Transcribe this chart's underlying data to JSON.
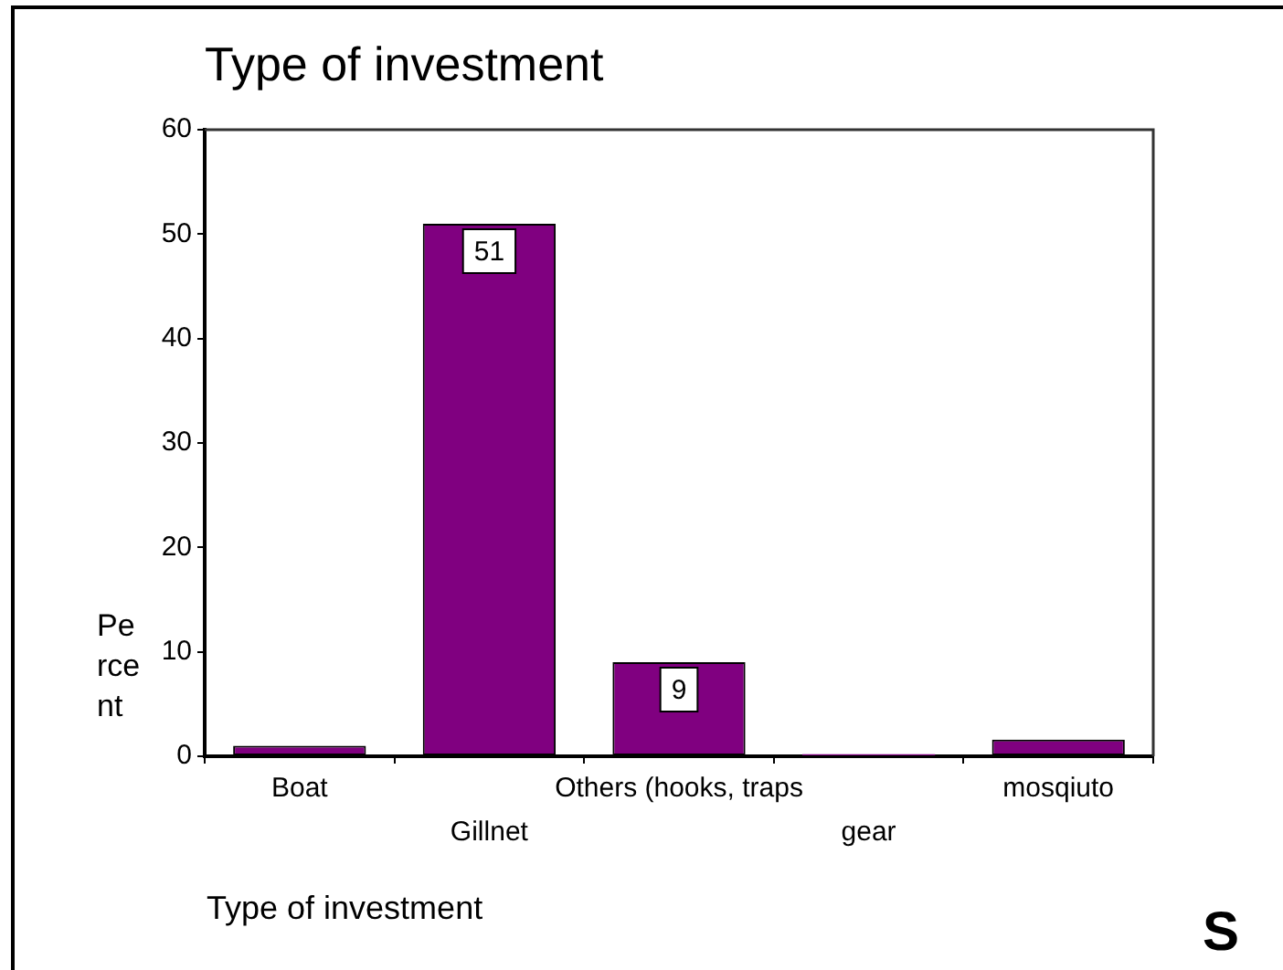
{
  "chart_data": {
    "type": "bar",
    "title": "Type of investment",
    "xlabel": "Type of investment",
    "ylabel": "Percent",
    "categories": [
      "Boat",
      "Gillnet",
      "Others (hooks, traps",
      "gear",
      "mosqiuto"
    ],
    "values": [
      1,
      51,
      9,
      0.2,
      1.6
    ],
    "value_labels": [
      null,
      "51",
      "9",
      null,
      null
    ],
    "color": "#800080",
    "ylim": [
      0,
      60
    ],
    "yticks": [
      0,
      10,
      20,
      30,
      40,
      50,
      60
    ],
    "grid": false,
    "annotations": [
      "S"
    ]
  }
}
